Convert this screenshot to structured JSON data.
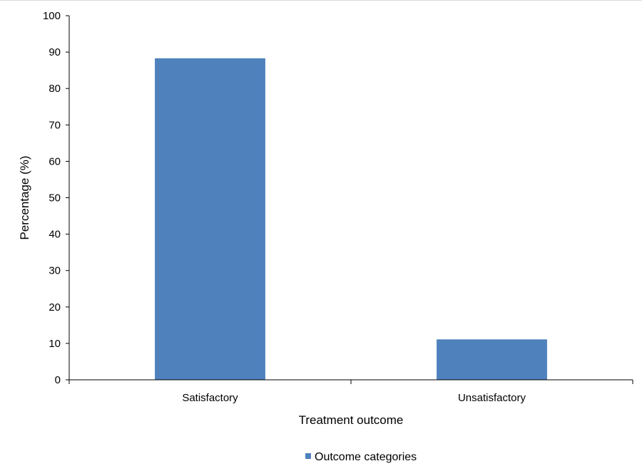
{
  "chart_data": {
    "type": "bar",
    "categories": [
      "Satisfactory",
      "Unsatisfactory"
    ],
    "series": [
      {
        "name": "Outcome categories",
        "values": [
          88.3,
          11.1
        ],
        "color": "#4f81bd"
      }
    ],
    "xlabel": "Treatment outcome",
    "ylabel": "Percentage (%)",
    "ylim": [
      0,
      100
    ],
    "yticks": [
      "0",
      "10",
      "20",
      "30",
      "40",
      "50",
      "60",
      "70",
      "80",
      "90",
      "100"
    ],
    "grid": false,
    "legend_position": "bottom"
  }
}
